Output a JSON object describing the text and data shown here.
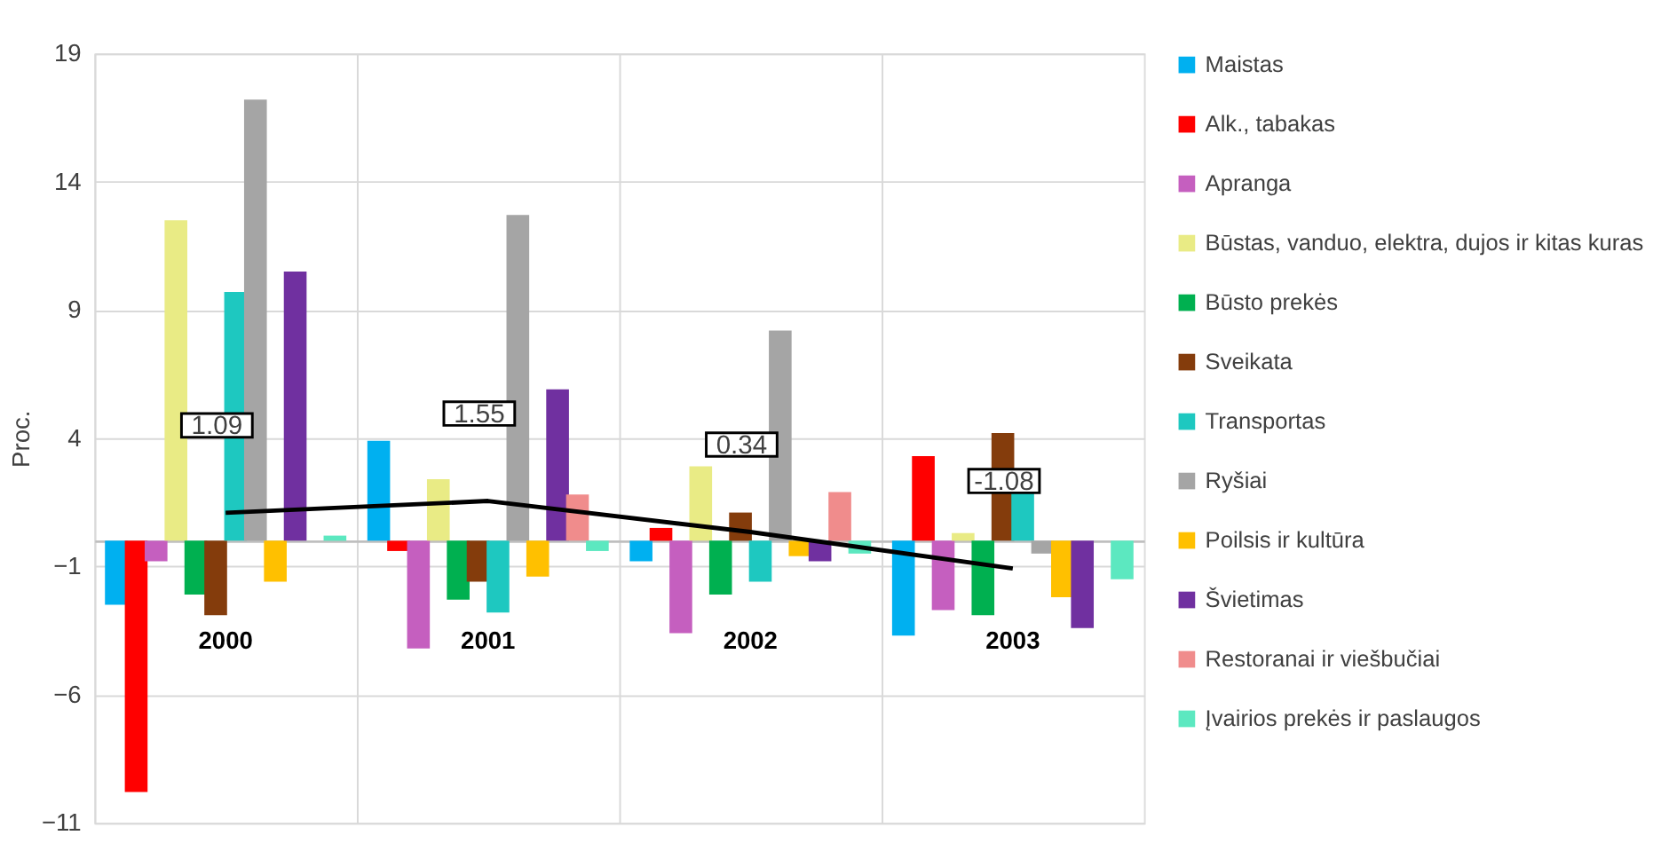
{
  "chart_data": {
    "type": "bar",
    "ylabel": "Proc.",
    "categories": [
      "2000",
      "2001",
      "2002",
      "2003"
    ],
    "ylim": [
      -11,
      19
    ],
    "yticks": [
      -11,
      -6,
      -1,
      4,
      9,
      14,
      19
    ],
    "grid": true,
    "legend": "right",
    "series": [
      {
        "name": "Maistas",
        "color": "#00b0f0",
        "values": [
          -2.5,
          3.9,
          -0.8,
          -3.7
        ]
      },
      {
        "name": "Alk., tabakas",
        "color": "#ff0000",
        "values": [
          -9.8,
          -0.4,
          0.5,
          3.3
        ]
      },
      {
        "name": "Apranga",
        "color": "#c55fbf",
        "values": [
          -0.8,
          -4.2,
          -3.6,
          -2.7
        ]
      },
      {
        "name": "Būstas, vanduo, elektra, dujos ir kitas kuras",
        "color": "#e9eb85",
        "values": [
          12.5,
          2.4,
          2.9,
          0.3
        ]
      },
      {
        "name": "Būsto prekės",
        "color": "#00b050",
        "values": [
          -2.1,
          -2.3,
          -2.1,
          -2.9
        ]
      },
      {
        "name": "Sveikata",
        "color": "#843c0c",
        "values": [
          -2.9,
          -1.6,
          1.1,
          4.2
        ]
      },
      {
        "name": "Transportas",
        "color": "#1ec8c0",
        "values": [
          9.7,
          -2.8,
          -1.6,
          1.9
        ]
      },
      {
        "name": "Ryšiai",
        "color": "#a5a5a5",
        "values": [
          17.2,
          12.7,
          8.2,
          -0.5
        ]
      },
      {
        "name": "Poilsis ir kultūra",
        "color": "#ffc000",
        "values": [
          -1.6,
          -1.4,
          -0.6,
          -2.2
        ]
      },
      {
        "name": "Švietimas",
        "color": "#7030a0",
        "values": [
          10.5,
          5.9,
          -0.8,
          -3.4
        ]
      },
      {
        "name": "Restoranai ir viešbučiai",
        "color": "#f08c8c",
        "values": [
          0,
          1.8,
          1.9,
          0
        ]
      },
      {
        "name": "Įvairios prekės ir paslaugos",
        "color": "#5ce8c0",
        "values": [
          0.2,
          -0.4,
          -0.5,
          -1.5
        ]
      },
      {
        "type": "line",
        "color": "#000000",
        "values": [
          1.09,
          1.55,
          0.34,
          -1.08
        ],
        "value_labels": [
          "1.09",
          "1.55",
          "0.34",
          "-1.08"
        ]
      }
    ]
  }
}
